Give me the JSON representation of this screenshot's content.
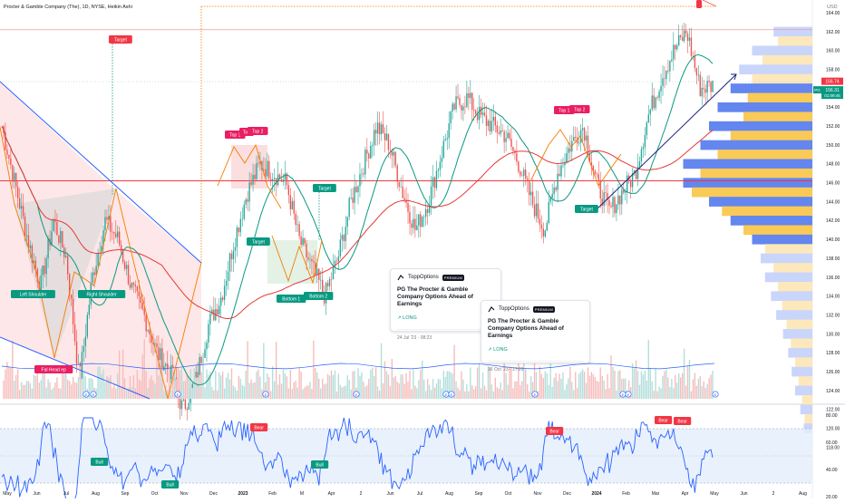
{
  "header": {
    "symbol_title": "Procter & Gamble Company (The), 1D, NYSE, Heikin Ashi",
    "currency": "USD"
  },
  "price_panel": {
    "y_ticks": [
      "164.00",
      "162.00",
      "160.00",
      "158.00",
      "156.00",
      "154.00",
      "152.00",
      "150.00",
      "148.00",
      "146.00",
      "144.00",
      "142.00",
      "140.00",
      "138.00",
      "136.00",
      "134.00",
      "132.00",
      "130.00",
      "128.00",
      "126.00",
      "124.00",
      "122.00",
      "120.00",
      "118.00"
    ],
    "ylim": [
      118,
      165
    ],
    "last_price_label": "156.74",
    "pg_price_label": "156.31",
    "countdown_label": "01:09:45",
    "pg_tag": "PG",
    "last_price_value": 156.74,
    "pg_price_value": 156.31,
    "horizontal_level": 146.2,
    "top_dotted_level": 162.2
  },
  "x_axis": {
    "labels": [
      "May",
      "Jun",
      "Jul",
      "Aug",
      "Sep",
      "Oct",
      "Nov",
      "Dec",
      "2023",
      "Feb",
      "M",
      "Apr",
      "2",
      "Jun",
      "Jul",
      "Aug",
      "Sep",
      "Oct",
      "Nov",
      "Dec",
      "2024",
      "Feb",
      "Mar",
      "Apr",
      "May",
      "Jun",
      "2",
      "Aug"
    ]
  },
  "annotations": {
    "target_labels": [
      "Target",
      "Target",
      "Target",
      "Target"
    ],
    "top1": "Top 1",
    "top_mid": "Top",
    "top2": "Top 2",
    "bottom1": "Bottom 1",
    "bottom2": "Bottom 2",
    "left_shoulder": "Left Shoulder",
    "right_shoulder": "Right Shoulder",
    "head_label": "Fal Head ep",
    "top1_b": "Top 1",
    "top2_b": "Top 2",
    "bull": "Bull",
    "bear": "Bear"
  },
  "ideas": [
    {
      "author": "ToppOptions",
      "badge": "PREMIUM",
      "title": "PG The Procter & Gamble Company Options Ahead of Earnings",
      "direction": "LONG",
      "date": "24 Jul '23 · 08:23"
    },
    {
      "author": "ToppOptions",
      "badge": "PREMIUM",
      "title": "PG The Procter & Gamble Company Options Ahead of Earnings",
      "direction": "LONG",
      "date": "16 Oct '23 · 17:29"
    }
  ],
  "oscillator": {
    "y_ticks": [
      "80.00",
      "60.00",
      "40.00",
      "20.00"
    ],
    "ylim": [
      15,
      85
    ],
    "band": [
      30,
      70
    ]
  },
  "colors": {
    "up": "#26a69a",
    "down": "#ef5350",
    "blue_line": "#2962ff",
    "red_line": "#f23645",
    "green_ma": "#089981",
    "orange_pattern": "#f57c00",
    "vp_orange": "#f9c74f",
    "vp_blue": "#4a74f0"
  },
  "chart_data": {
    "type": "candlestick",
    "title": "Procter & Gamble Company (The), 1D, NYSE, Heikin Ashi",
    "ylim": [
      118,
      165
    ],
    "close_path": [
      [
        "May 2022",
        152
      ],
      [
        "May 2022",
        146
      ],
      [
        "Jun 2022",
        140
      ],
      [
        "Jun 2022",
        135
      ],
      [
        "Jun 2022",
        142
      ],
      [
        "Jul 2022",
        138
      ],
      [
        "Jul 2022",
        125
      ],
      [
        "Jul 2022",
        136
      ],
      [
        "Aug 2022",
        142
      ],
      [
        "Aug 2022",
        140
      ],
      [
        "Aug 2022",
        135
      ],
      [
        "Sep 2022",
        132
      ],
      [
        "Sep 2022",
        128
      ],
      [
        "Sep 2022",
        126
      ],
      [
        "Oct 2022",
        122
      ],
      [
        "Oct 2022",
        125
      ],
      [
        "Oct 2022",
        131
      ],
      [
        "Nov 2022",
        134
      ],
      [
        "Nov 2022",
        140
      ],
      [
        "Dec 2022",
        145
      ],
      [
        "Dec 2022",
        148
      ],
      [
        "2023",
        147
      ],
      [
        "Jan 2023",
        146
      ],
      [
        "Feb 2023",
        140
      ],
      [
        "Feb 2023",
        137
      ],
      [
        "Mar 2023",
        134
      ],
      [
        "Mar 2023",
        138
      ],
      [
        "Mar 2023",
        144
      ],
      [
        "Apr 2023",
        148
      ],
      [
        "Apr 2023",
        152
      ],
      [
        "May 2023",
        150
      ],
      [
        "May 2023",
        145
      ],
      [
        "Jun 2023",
        141
      ],
      [
        "Jun 2023",
        144
      ],
      [
        "Jul 2023",
        149
      ],
      [
        "Jul 2023",
        154
      ],
      [
        "Aug 2023",
        155
      ],
      [
        "Aug 2023",
        153
      ],
      [
        "Aug 2023",
        152
      ],
      [
        "Sep 2023",
        151
      ],
      [
        "Sep 2023",
        148
      ],
      [
        "Oct 2023",
        144
      ],
      [
        "Oct 2023",
        141
      ],
      [
        "Oct 2023",
        147
      ],
      [
        "Nov 2023",
        150
      ],
      [
        "Nov 2023",
        152
      ],
      [
        "Dec 2023",
        146
      ],
      [
        "Dec 2023",
        143
      ],
      [
        "2024",
        145
      ],
      [
        "Jan 2024",
        147
      ],
      [
        "Feb 2024",
        153
      ],
      [
        "Feb 2024",
        157
      ],
      [
        "Mar 2024",
        160
      ],
      [
        "Mar 2024",
        162
      ],
      [
        "Apr 2024",
        156
      ],
      [
        "Apr 2024",
        156.3
      ]
    ]
  }
}
